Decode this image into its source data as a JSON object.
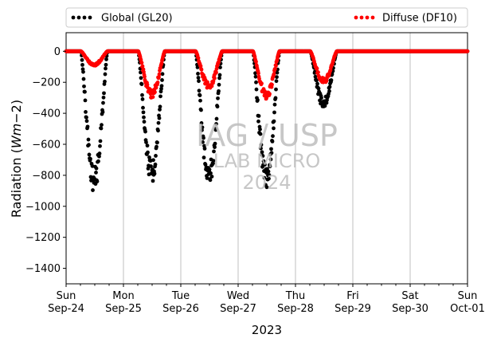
{
  "chart_data": {
    "type": "scatter",
    "xlabel": "2023",
    "ylabel": "Radiation (Wm−2)",
    "ylabel_prefix": "Radiation (",
    "ylabel_unit_main": "Wm",
    "ylabel_unit_rest": "−2",
    "ylabel_suffix": ")",
    "ylim": [
      -1500,
      120
    ],
    "xlim_days": [
      0,
      7
    ],
    "yticks": [
      0,
      -200,
      -400,
      -600,
      -800,
      -1000,
      -1200,
      -1400
    ],
    "ytick_labels": [
      "0",
      "−200",
      "−400",
      "−600",
      "−800",
      "−1000",
      "−1200",
      "−1400"
    ],
    "xticks": [
      {
        "day": 0,
        "weekday": "Sun",
        "date": "Sep-24"
      },
      {
        "day": 1,
        "weekday": "Mon",
        "date": "Sep-25"
      },
      {
        "day": 2,
        "weekday": "Tue",
        "date": "Sep-26"
      },
      {
        "day": 3,
        "weekday": "Wed",
        "date": "Sep-27"
      },
      {
        "day": 4,
        "weekday": "Thu",
        "date": "Sep-28"
      },
      {
        "day": 5,
        "weekday": "Fri",
        "date": "Sep-29"
      },
      {
        "day": 6,
        "weekday": "Sat",
        "date": "Sep-30"
      },
      {
        "day": 7,
        "weekday": "Sun",
        "date": "Oct-01"
      }
    ],
    "grid": "vertical",
    "legend_placement": "top",
    "watermark": [
      "IAG / USP",
      "LAB MICRO",
      "2024"
    ],
    "series": [
      {
        "name": "Global (GL20)",
        "color": "#000000",
        "daily_minimum": [
          -915,
          -860,
          -880,
          -890,
          -370,
          0,
          0
        ]
      },
      {
        "name": "Diffuse (DF10)",
        "color": "#ff0000",
        "daily_minimum": [
          -95,
          -300,
          -245,
          -310,
          -210,
          0,
          0
        ]
      }
    ]
  }
}
